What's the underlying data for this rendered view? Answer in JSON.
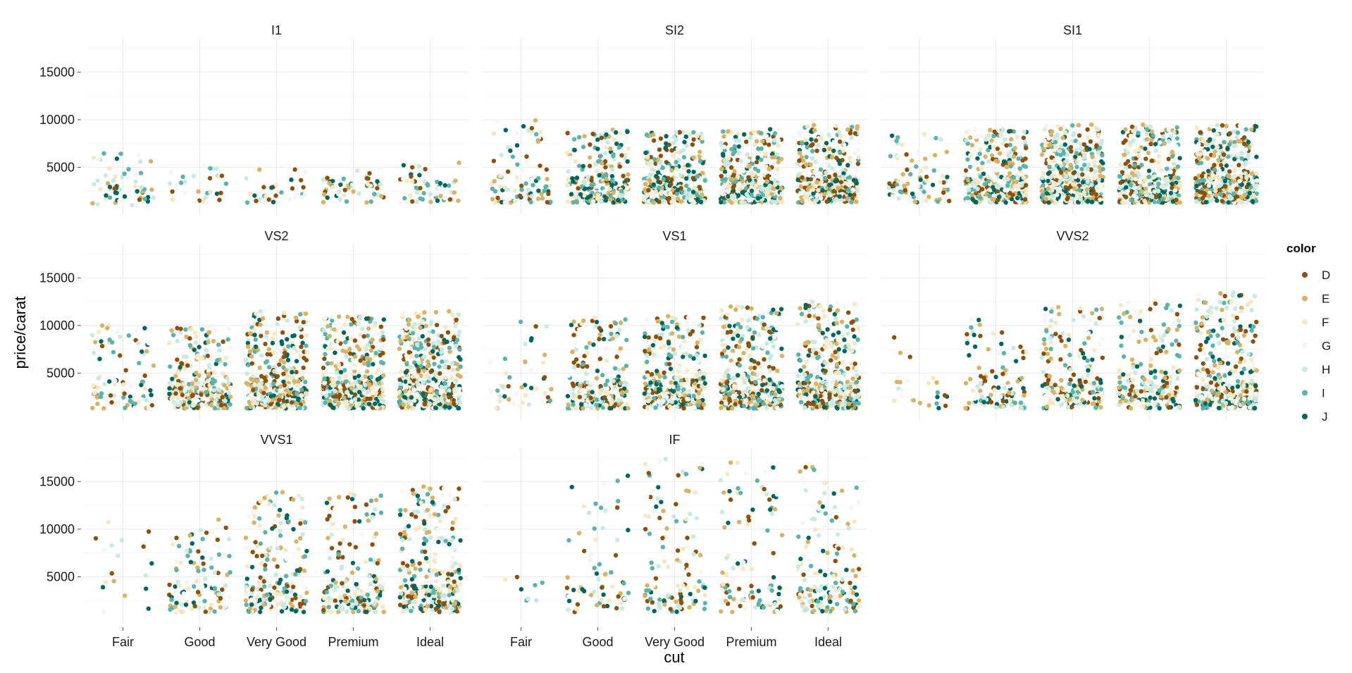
{
  "chart_data": {
    "type": "scatter",
    "jitter": true,
    "x_var": "cut",
    "y_var": "price/carat",
    "xlabel": "cut",
    "ylabel": "price/carat",
    "categories": [
      "Fair",
      "Good",
      "Very Good",
      "Premium",
      "Ideal"
    ],
    "ylim": [
      0,
      18500
    ],
    "yticks": [
      5000,
      10000,
      15000
    ],
    "grid": true,
    "facet_wrap": {
      "var": "clarity",
      "ncol": 3
    },
    "legend": {
      "title": "color",
      "position": "right",
      "entries": [
        {
          "label": "D",
          "color": "#8c510a"
        },
        {
          "label": "E",
          "color": "#d8b365"
        },
        {
          "label": "F",
          "color": "#f6e8c3"
        },
        {
          "label": "G",
          "color": "#f5f5f5"
        },
        {
          "label": "H",
          "color": "#c7eae5"
        },
        {
          "label": "I",
          "color": "#5ab4ac"
        },
        {
          "label": "J",
          "color": "#01665e"
        }
      ]
    },
    "panels": [
      {
        "title": "I1",
        "ranges": [
          [
            1000,
            6500
          ],
          [
            1300,
            5000
          ],
          [
            1300,
            5000
          ],
          [
            1300,
            5000
          ],
          [
            1300,
            5500
          ]
        ],
        "density": [
          60,
          30,
          35,
          55,
          55
        ]
      },
      {
        "title": "SI2",
        "ranges": [
          [
            1300,
            10000
          ],
          [
            1300,
            9000
          ],
          [
            1300,
            9000
          ],
          [
            1300,
            9000
          ],
          [
            1300,
            9500
          ]
        ],
        "density": [
          90,
          250,
          330,
          340,
          370
        ]
      },
      {
        "title": "SI1",
        "ranges": [
          [
            1300,
            8500
          ],
          [
            1300,
            9000
          ],
          [
            1300,
            9500
          ],
          [
            1300,
            9500
          ],
          [
            1300,
            9500
          ]
        ],
        "density": [
          90,
          320,
          420,
          400,
          420
        ]
      },
      {
        "title": "VS2",
        "ranges": [
          [
            1300,
            10000
          ],
          [
            1300,
            10000
          ],
          [
            1300,
            11500
          ],
          [
            1300,
            11000
          ],
          [
            1300,
            11500
          ]
        ],
        "density": [
          90,
          280,
          400,
          420,
          440
        ]
      },
      {
        "title": "VS1",
        "ranges": [
          [
            1300,
            10500
          ],
          [
            1300,
            11000
          ],
          [
            1300,
            11000
          ],
          [
            1300,
            12000
          ],
          [
            1300,
            12500
          ]
        ],
        "density": [
          45,
          220,
          320,
          360,
          400
        ]
      },
      {
        "title": "VVS2",
        "ranges": [
          [
            1300,
            11000
          ],
          [
            1300,
            11500
          ],
          [
            1300,
            12000
          ],
          [
            1300,
            12500
          ],
          [
            1300,
            13500
          ]
        ],
        "density": [
          25,
          110,
          210,
          220,
          320
        ]
      },
      {
        "title": "VVS1",
        "ranges": [
          [
            1300,
            11000
          ],
          [
            1300,
            11000
          ],
          [
            1300,
            14000
          ],
          [
            1300,
            14000
          ],
          [
            1300,
            14500
          ]
        ],
        "density": [
          18,
          110,
          200,
          200,
          310
        ]
      },
      {
        "title": "IF",
        "ranges": [
          [
            2500,
            5000
          ],
          [
            1300,
            16000
          ],
          [
            1300,
            17500
          ],
          [
            1300,
            17000
          ],
          [
            1300,
            17000
          ]
        ],
        "density": [
          8,
          70,
          120,
          110,
          170
        ]
      }
    ]
  }
}
